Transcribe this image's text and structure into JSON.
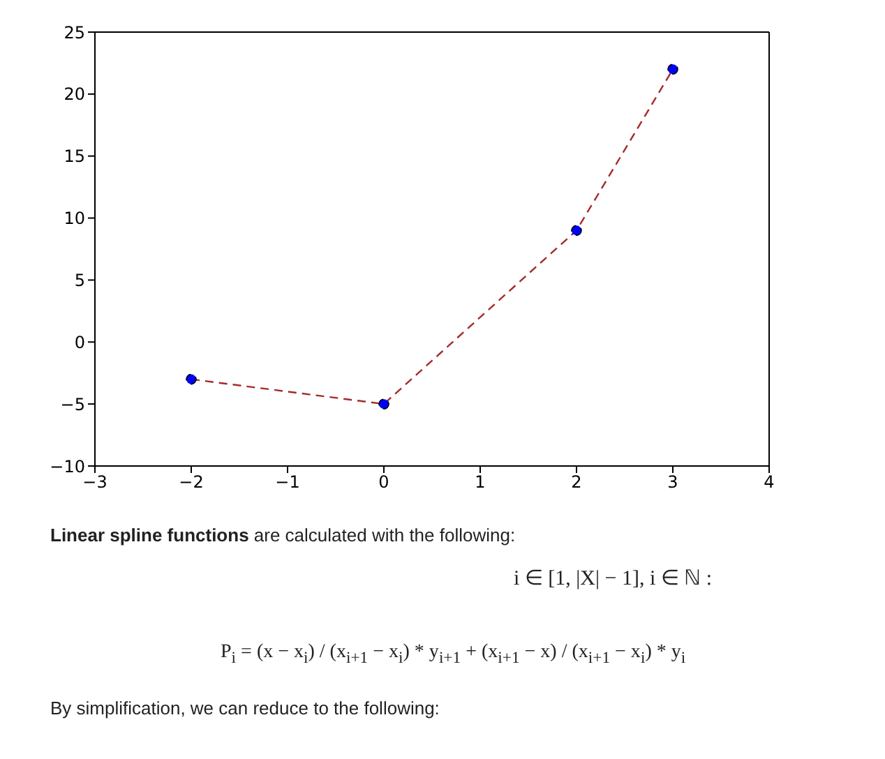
{
  "chart_data": {
    "type": "line",
    "x": [
      -2,
      0,
      2,
      3
    ],
    "series": [
      {
        "color": "#a52a2a",
        "values": [
          -3,
          -5,
          9,
          22
        ]
      }
    ],
    "xlim": [
      -3,
      4
    ],
    "xticks": [
      -3,
      -2,
      -1,
      0,
      1,
      2,
      3,
      4
    ],
    "ylim": [
      -10,
      25
    ],
    "yticks": [
      -10,
      -5,
      0,
      5,
      10,
      15,
      20,
      25
    ],
    "marker": "circle",
    "line_style": "dashed",
    "grid": false,
    "legend": false,
    "annotations": [
      "Linear spline functions",
      " are calculated with the following:",
      "i ∈ [1, |X| − 1], i ∈ ℕ :",
      "P$_{i}$ = (x − x$_{i}$) / (x$_{i+1}$ − x$_{i}$) * y$_{i+1}$ + (x$_{i+1}$ − x) / (x$_{i+1}$ − x$_{i}$) * y$_{i}$",
      "By simplification, we can reduce to the following:"
    ]
  }
}
